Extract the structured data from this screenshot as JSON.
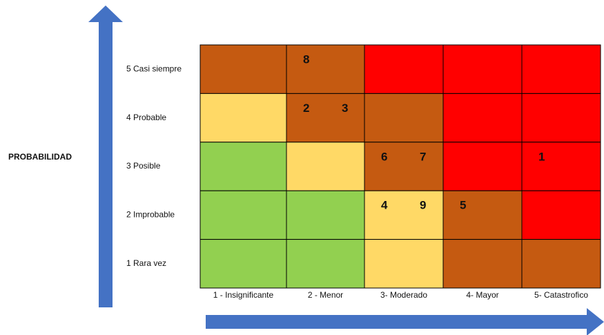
{
  "matrix": {
    "y_axis_title": "PROBABILIDAD",
    "columns": [
      "1 - Insignificante",
      "2 - Menor",
      "3- Moderado",
      "4- Mayor",
      "5- Catastrofico"
    ],
    "rows": [
      {
        "label": "5 Casi siempre",
        "cells": [
          {
            "color": "#c55a11",
            "items": []
          },
          {
            "color": "#c55a11",
            "items": [
              "8"
            ]
          },
          {
            "color": "#ff0000",
            "items": []
          },
          {
            "color": "#ff0000",
            "items": []
          },
          {
            "color": "#ff0000",
            "items": []
          }
        ]
      },
      {
        "label": "4 Probable",
        "cells": [
          {
            "color": "#ffd966",
            "items": []
          },
          {
            "color": "#c55a11",
            "items": [
              "2",
              "3"
            ]
          },
          {
            "color": "#c55a11",
            "items": []
          },
          {
            "color": "#ff0000",
            "items": []
          },
          {
            "color": "#ff0000",
            "items": []
          }
        ]
      },
      {
        "label": "3 Posible",
        "cells": [
          {
            "color": "#92d050",
            "items": []
          },
          {
            "color": "#ffd966",
            "items": []
          },
          {
            "color": "#c55a11",
            "items": [
              "6",
              "7"
            ]
          },
          {
            "color": "#ff0000",
            "items": []
          },
          {
            "color": "#ff0000",
            "items": [
              "1"
            ]
          }
        ]
      },
      {
        "label": "2 Improbable",
        "cells": [
          {
            "color": "#92d050",
            "items": []
          },
          {
            "color": "#92d050",
            "items": []
          },
          {
            "color": "#ffd966",
            "items": [
              "4",
              "9"
            ]
          },
          {
            "color": "#c55a11",
            "items": [
              "5"
            ]
          },
          {
            "color": "#ff0000",
            "items": []
          }
        ]
      },
      {
        "label": "1 Rara vez",
        "cells": [
          {
            "color": "#92d050",
            "items": []
          },
          {
            "color": "#92d050",
            "items": []
          },
          {
            "color": "#ffd966",
            "items": []
          },
          {
            "color": "#c55a11",
            "items": []
          },
          {
            "color": "#c55a11",
            "items": []
          }
        ]
      }
    ]
  }
}
